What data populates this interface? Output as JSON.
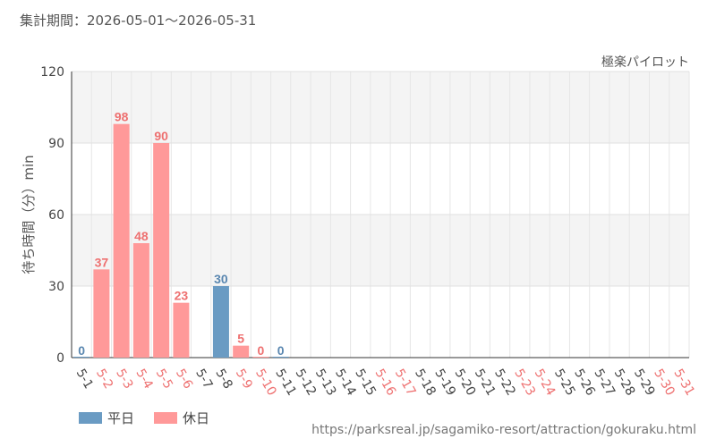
{
  "header": {
    "period_label": "集計期間：2026-05-01～2026-05-31",
    "attraction_name": "極楽パイロット"
  },
  "footer": {
    "source_url": "https://parksreal.jp/sagamiko-resort/attraction/gokuraku.html"
  },
  "colors": {
    "weekday": "#6a9bc3",
    "holiday": "#ff9999",
    "weekday_text": "#5a87b0",
    "holiday_text": "#ee7070",
    "axis_text": "#444444"
  },
  "chart_data": {
    "type": "bar",
    "title": "",
    "ylabel": "待ち時間（分）min",
    "xlabel": "",
    "ylim": [
      0,
      120
    ],
    "yticks": [
      0,
      30,
      60,
      90,
      120
    ],
    "grid": true,
    "legend": {
      "position": "bottom-left",
      "items": [
        {
          "name": "平日",
          "kind": "weekday"
        },
        {
          "name": "休日",
          "kind": "holiday"
        }
      ]
    },
    "categories": [
      "5-1",
      "5-2",
      "5-3",
      "5-4",
      "5-5",
      "5-6",
      "5-7",
      "5-8",
      "5-9",
      "5-10",
      "5-11",
      "5-12",
      "5-13",
      "5-14",
      "5-15",
      "5-16",
      "5-17",
      "5-18",
      "5-19",
      "5-20",
      "5-21",
      "5-22",
      "5-23",
      "5-24",
      "5-25",
      "5-26",
      "5-27",
      "5-28",
      "5-29",
      "5-30",
      "5-31"
    ],
    "day_types": [
      "weekday",
      "holiday",
      "holiday",
      "holiday",
      "holiday",
      "holiday",
      "weekday",
      "weekday",
      "holiday",
      "holiday",
      "weekday",
      "weekday",
      "weekday",
      "weekday",
      "weekday",
      "holiday",
      "holiday",
      "weekday",
      "weekday",
      "weekday",
      "weekday",
      "weekday",
      "holiday",
      "holiday",
      "weekday",
      "weekday",
      "weekday",
      "weekday",
      "weekday",
      "holiday",
      "holiday"
    ],
    "values": [
      0,
      37,
      98,
      48,
      90,
      23,
      null,
      30,
      5,
      0,
      0,
      null,
      null,
      null,
      null,
      null,
      null,
      null,
      null,
      null,
      null,
      null,
      null,
      null,
      null,
      null,
      null,
      null,
      null,
      null,
      null
    ]
  }
}
